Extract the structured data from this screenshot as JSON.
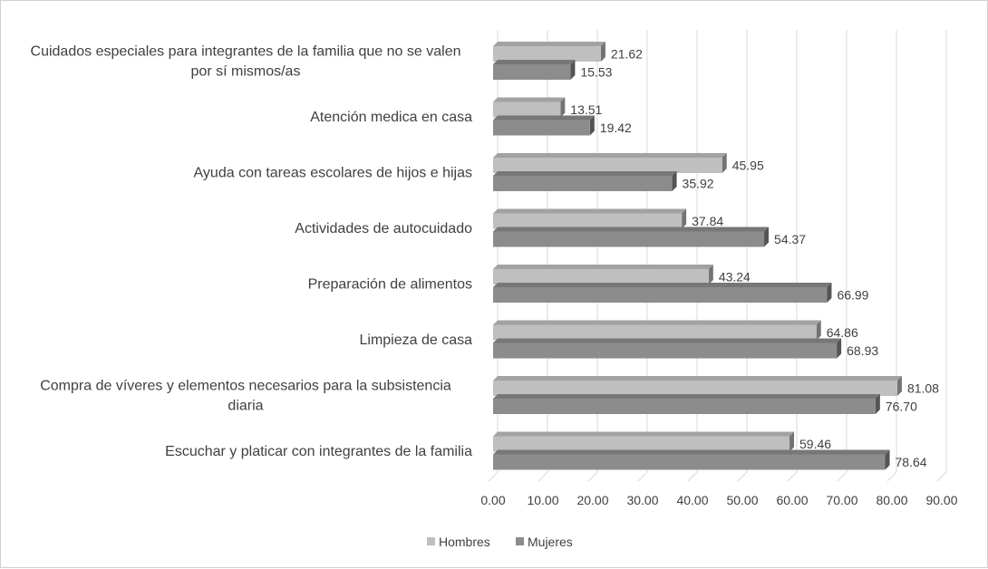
{
  "chart_data": {
    "type": "bar",
    "orientation": "horizontal",
    "categories": [
      "Escuchar y platicar con integrantes de la familia",
      "Compra de víveres y elementos necesarios para la subsistencia diaria",
      "Limpieza de casa",
      "Preparación de alimentos",
      "Actividades de autocuidado",
      "Ayuda con tareas escolares de hijos e hijas",
      "Atención medica en casa",
      "Cuidados especiales para integrantes de la familia que no se valen por sí mismos/as"
    ],
    "category_lines": [
      [
        "Escuchar y platicar con integrantes de la familia"
      ],
      [
        "Compra de víveres y elementos necesarios para la subsistencia",
        "diaria"
      ],
      [
        "Limpieza de casa"
      ],
      [
        "Preparación de alimentos"
      ],
      [
        "Actividades de autocuidado"
      ],
      [
        "Ayuda con tareas escolares de hijos e hijas"
      ],
      [
        "Atención medica en casa"
      ],
      [
        "Cuidados especiales para integrantes de la familia que no se valen",
        "por sí mismos/as"
      ]
    ],
    "series": [
      {
        "name": "Hombres",
        "color": "#bfbfbf",
        "values": [
          59.46,
          81.08,
          64.86,
          43.24,
          37.84,
          45.95,
          13.51,
          21.62
        ],
        "labels": [
          "59.46",
          "81.08",
          "64.86",
          "43.24",
          "37.84",
          "45.95",
          "13.51",
          "21.62"
        ]
      },
      {
        "name": "Mujeres",
        "color": "#8c8c8c",
        "values": [
          78.64,
          76.7,
          68.93,
          66.99,
          54.37,
          35.92,
          19.42,
          15.53
        ],
        "labels": [
          "78.64",
          "76.70",
          "68.93",
          "66.99",
          "54.37",
          "35.92",
          "19.42",
          "15.53"
        ]
      }
    ],
    "xlim": [
      0,
      90
    ],
    "xticks": [
      "0.00",
      "10.00",
      "20.00",
      "30.00",
      "40.00",
      "50.00",
      "60.00",
      "70.00",
      "80.00",
      "90.00"
    ],
    "grid": true,
    "legend": "bottom",
    "title": "",
    "xlabel": "",
    "ylabel": ""
  }
}
